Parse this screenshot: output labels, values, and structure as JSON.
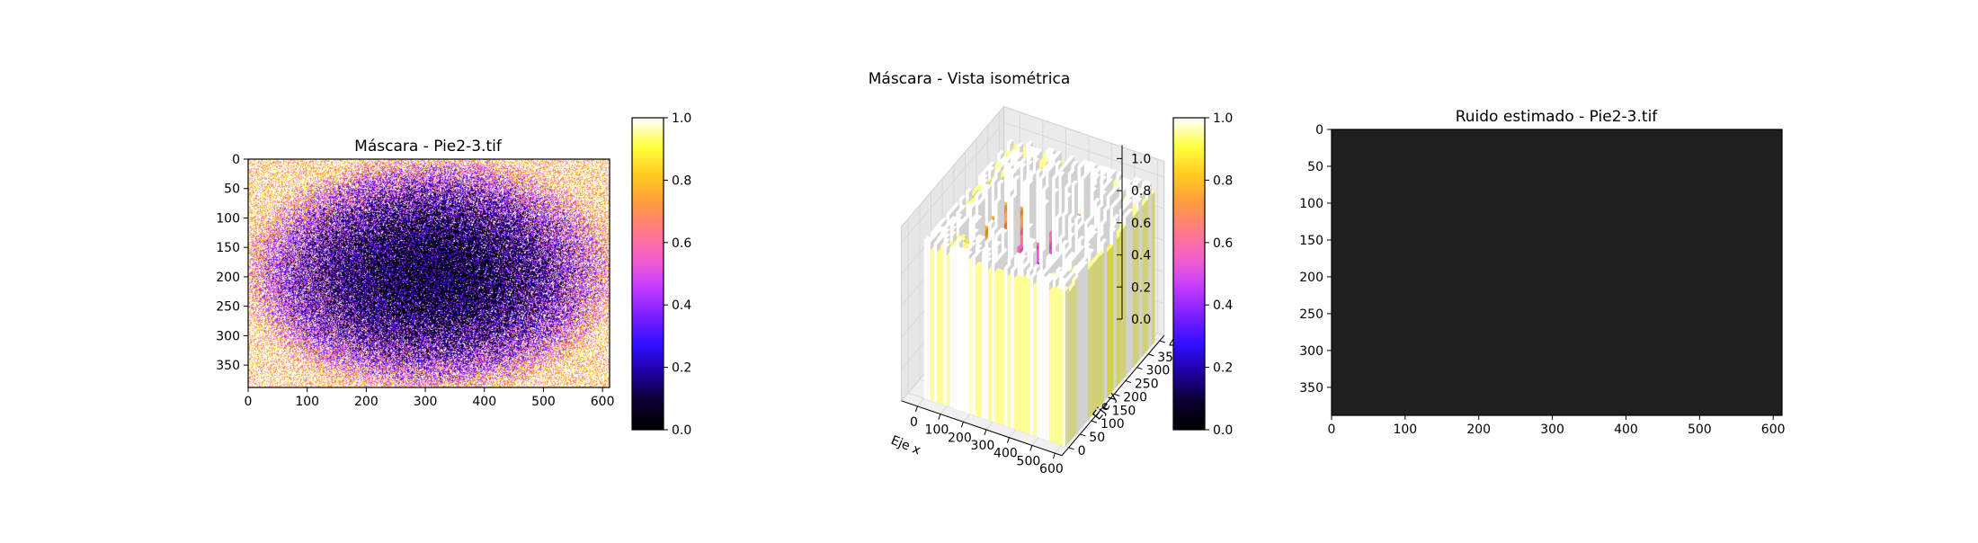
{
  "figure": {
    "suptitle": "Máscara - Vista isométrica"
  },
  "colormap": {
    "name": "plasma-like",
    "stops": [
      "#000000",
      "#0a0030",
      "#2000a0",
      "#2f0fff",
      "#7a1fff",
      "#c23bff",
      "#f35ed0",
      "#ff7a8a",
      "#ff9c40",
      "#ffcc20",
      "#ffff40",
      "#ffffff"
    ]
  },
  "chart_data": [
    {
      "type": "heatmap",
      "title": "Máscara - Pie2-3.tif",
      "xticks": [
        0,
        100,
        200,
        300,
        400,
        500,
        600
      ],
      "yticks": [
        0,
        50,
        100,
        150,
        200,
        250,
        300,
        350
      ],
      "xlim": [
        0,
        612
      ],
      "ylim": [
        388,
        0
      ],
      "center": [
        310,
        195
      ],
      "value_range": [
        0,
        1
      ],
      "pattern": "noisy radial mask: near 0 in center ellipse, rising to 1 at corners",
      "colorbar": {
        "ticks": [
          "0.0",
          "0.2",
          "0.4",
          "0.6",
          "0.8",
          "1.0"
        ],
        "range": [
          0,
          1
        ]
      }
    },
    {
      "type": "surface3d",
      "title": "",
      "xlabel": "Eje x",
      "ylabel": "Eje y",
      "xticks": [
        0,
        100,
        200,
        300,
        400,
        500,
        600
      ],
      "yticks": [
        0,
        50,
        100,
        150,
        200,
        250,
        300,
        350,
        400
      ],
      "zticks": [
        "0.0",
        "0.2",
        "0.4",
        "0.6",
        "0.8",
        "1.0"
      ],
      "zlim": [
        0,
        1
      ],
      "pattern": "same mask as 3D bar surface: high (~1) on borders, low (~0) in center",
      "colorbar": {
        "ticks": [
          "0.0",
          "0.2",
          "0.4",
          "0.6",
          "0.8",
          "1.0"
        ],
        "range": [
          0,
          1
        ]
      }
    },
    {
      "type": "heatmap",
      "title": "Ruido estimado - Pie2-3.tif",
      "xticks": [
        0,
        100,
        200,
        300,
        400,
        500,
        600
      ],
      "yticks": [
        0,
        50,
        100,
        150,
        200,
        250,
        300,
        350
      ],
      "xlim": [
        0,
        612
      ],
      "ylim": [
        388,
        0
      ],
      "value_range": [
        0,
        0
      ],
      "fill_color": "#1f1f1f",
      "pattern": "uniform dark (no visible noise)"
    }
  ]
}
